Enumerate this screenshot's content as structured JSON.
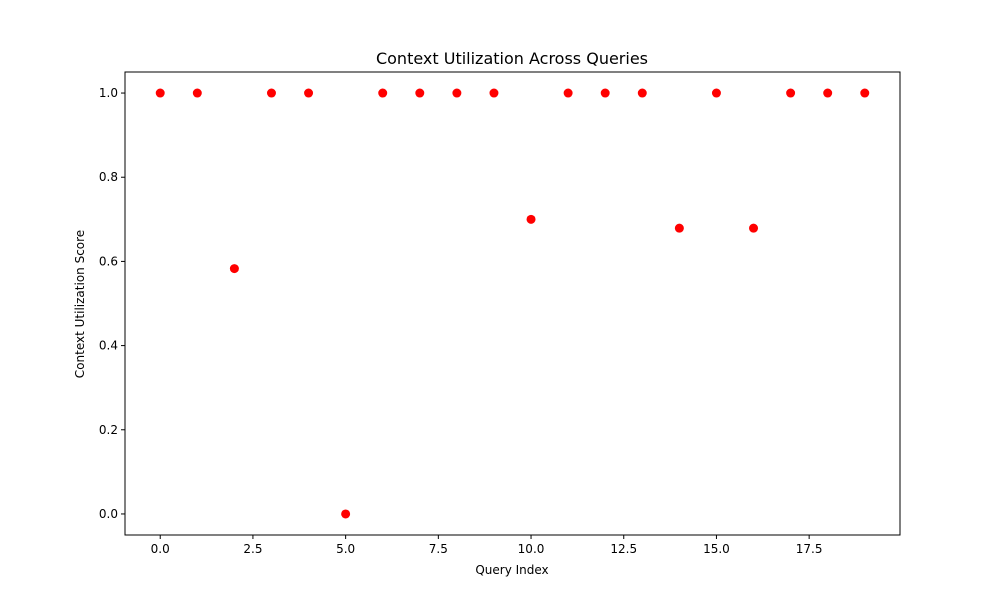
{
  "chart_data": {
    "type": "scatter",
    "title": "Context Utilization Across Queries",
    "xlabel": "Query Index",
    "ylabel": "Context Utilization Score",
    "x": [
      0,
      1,
      2,
      3,
      4,
      5,
      6,
      7,
      8,
      9,
      10,
      11,
      12,
      13,
      14,
      15,
      16,
      17,
      18,
      19
    ],
    "y": [
      1.0,
      1.0,
      0.583,
      1.0,
      1.0,
      0.0,
      1.0,
      1.0,
      1.0,
      1.0,
      0.7,
      1.0,
      1.0,
      1.0,
      0.679,
      1.0,
      0.679,
      1.0,
      1.0,
      1.0
    ],
    "xlim": [
      -0.95,
      19.95
    ],
    "ylim": [
      -0.05,
      1.05
    ],
    "xticks": [
      0.0,
      2.5,
      5.0,
      7.5,
      10.0,
      12.5,
      15.0,
      17.5
    ],
    "xtick_labels": [
      "0.0",
      "2.5",
      "5.0",
      "7.5",
      "10.0",
      "12.5",
      "15.0",
      "17.5"
    ],
    "yticks": [
      0.0,
      0.2,
      0.4,
      0.6,
      0.8,
      1.0
    ],
    "ytick_labels": [
      "0.0",
      "0.2",
      "0.4",
      "0.6",
      "0.8",
      "1.0"
    ],
    "grid": false,
    "marker_color": "#ff0000"
  }
}
